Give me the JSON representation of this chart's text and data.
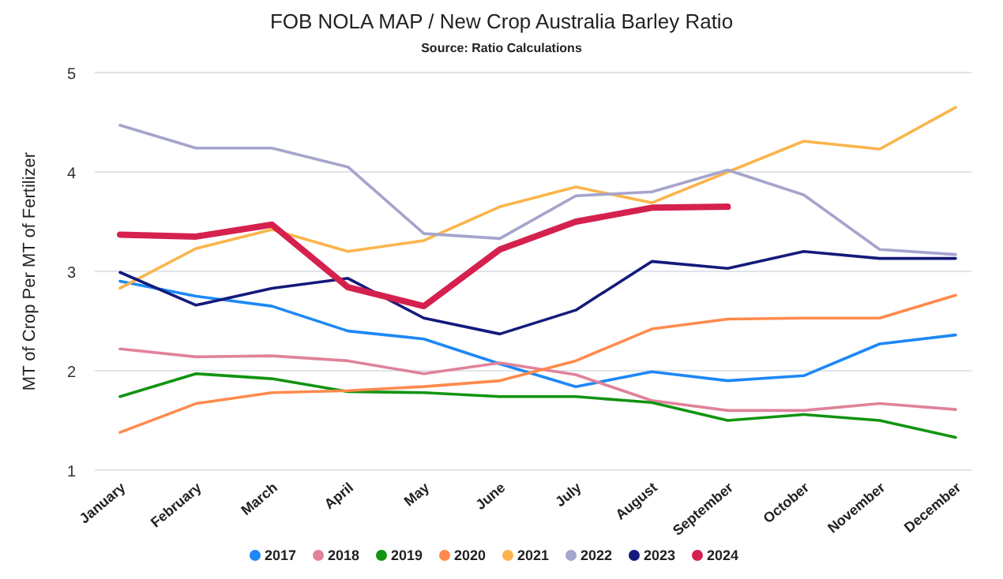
{
  "chart_data": {
    "type": "line",
    "title": "FOB NOLA MAP / New Crop Australia Barley Ratio",
    "subtitle": "Source: Ratio Calculations",
    "ylabel": "MT of Crop Per MT of Fertilizer",
    "categories": [
      "January",
      "February",
      "March",
      "April",
      "May",
      "June",
      "July",
      "August",
      "September",
      "October",
      "November",
      "December"
    ],
    "ylim": [
      1,
      5
    ],
    "yticks": [
      1,
      2,
      3,
      4,
      5
    ],
    "grid": "y",
    "legend": "bottom",
    "marker": "none",
    "series": [
      {
        "name": "2017",
        "color": "#1e88f5",
        "values": [
          2.9,
          2.75,
          2.65,
          2.4,
          2.32,
          2.07,
          1.84,
          1.99,
          1.9,
          1.95,
          2.27,
          2.36
        ]
      },
      {
        "name": "2018",
        "color": "#e0829a",
        "values": [
          2.22,
          2.14,
          2.15,
          2.1,
          1.97,
          2.08,
          1.96,
          1.7,
          1.6,
          1.6,
          1.67,
          1.61
        ]
      },
      {
        "name": "2019",
        "color": "#119411",
        "values": [
          1.74,
          1.97,
          1.92,
          1.79,
          1.78,
          1.74,
          1.74,
          1.68,
          1.5,
          1.56,
          1.5,
          1.33
        ]
      },
      {
        "name": "2020",
        "color": "#ff8a4c",
        "values": [
          1.38,
          1.67,
          1.78,
          1.8,
          1.84,
          1.9,
          2.1,
          2.42,
          2.52,
          2.53,
          2.53,
          2.76
        ]
      },
      {
        "name": "2021",
        "color": "#fbb44a",
        "values": [
          2.83,
          3.23,
          3.42,
          3.2,
          3.31,
          3.65,
          3.85,
          3.69,
          4.0,
          4.31,
          4.23,
          4.65
        ]
      },
      {
        "name": "2022",
        "color": "#a4a4cc",
        "values": [
          4.47,
          4.24,
          4.24,
          4.05,
          3.38,
          3.33,
          3.76,
          3.8,
          4.02,
          3.77,
          3.22,
          3.17
        ]
      },
      {
        "name": "2023",
        "color": "#141a7a",
        "values": [
          2.99,
          2.66,
          2.83,
          2.93,
          2.53,
          2.37,
          2.61,
          3.1,
          3.03,
          3.2,
          3.13,
          3.13
        ]
      },
      {
        "name": "2024",
        "color": "#d5214e",
        "values": [
          3.37,
          3.35,
          3.47,
          2.84,
          2.65,
          3.22,
          3.5,
          3.64,
          3.65,
          null,
          null,
          null
        ]
      }
    ]
  }
}
